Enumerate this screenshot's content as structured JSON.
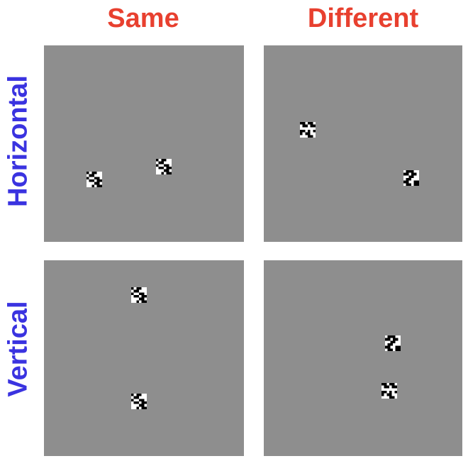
{
  "columns": [
    "Same",
    "Different"
  ],
  "rows": [
    "Horizontal",
    "Vertical"
  ],
  "colors": {
    "column_label": "#e8402f",
    "row_label": "#3a33e0",
    "panel_background": "#8e8e8e",
    "stimulus_background": "#ffffff",
    "stimulus_pixel": "#000000"
  },
  "stimulus_patterns": {
    "A": [
      "101100",
      "011000",
      "100110",
      "011011",
      "000110",
      "001011"
    ],
    "B": [
      "110110",
      "011011",
      "000000",
      "110101",
      "101100",
      "000110"
    ],
    "C": [
      "011100",
      "110110",
      "001100",
      "011000",
      "110011",
      "011011"
    ]
  },
  "panels": [
    {
      "row": "Horizontal",
      "column": "Same",
      "stimuli": [
        "A",
        "A"
      ]
    },
    {
      "row": "Horizontal",
      "column": "Different",
      "stimuli": [
        "B",
        "C"
      ]
    },
    {
      "row": "Vertical",
      "column": "Same",
      "stimuli": [
        "A",
        "A"
      ]
    },
    {
      "row": "Vertical",
      "column": "Different",
      "stimuli": [
        "C",
        "B"
      ]
    }
  ]
}
